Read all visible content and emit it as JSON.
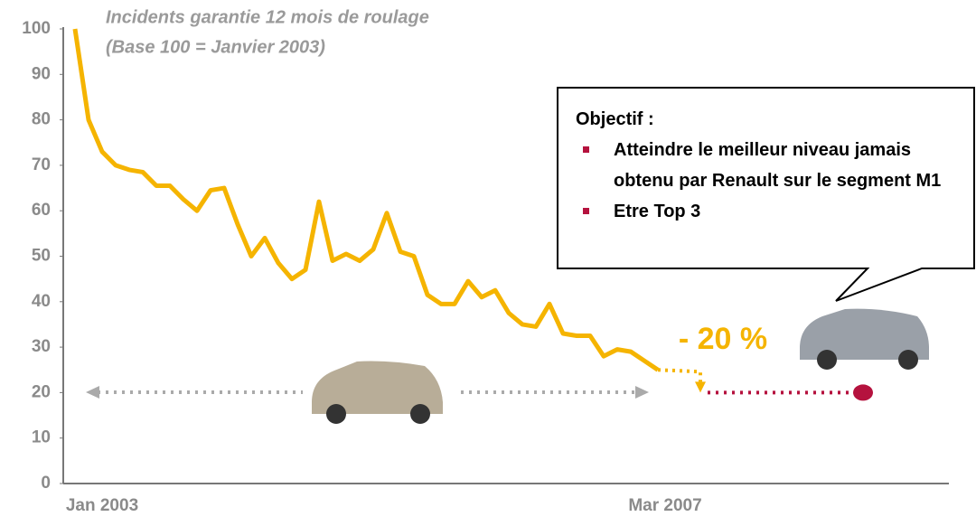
{
  "chart_data": {
    "type": "line",
    "title": "Incidents garantie 12 mois de roulage",
    "subtitle": "(Base 100 = Janvier 2003)",
    "categories": [
      "Jan 2003",
      null,
      null,
      null,
      null,
      null,
      null,
      null,
      null,
      null,
      null,
      null,
      null,
      null,
      null,
      null,
      null,
      null,
      null,
      null,
      null,
      null,
      null,
      null,
      null,
      null,
      null,
      null,
      null,
      null,
      null,
      null,
      null,
      null,
      null,
      null,
      null,
      null,
      null,
      null,
      null,
      null,
      null,
      "Mar 2007"
    ],
    "series": [
      {
        "color": "#f5b400",
        "values": [
          100,
          80,
          73,
          70,
          69,
          68.5,
          65.5,
          65.5,
          62.5,
          60,
          64.5,
          65,
          57,
          50,
          54,
          48.5,
          45,
          47,
          62,
          49,
          50.5,
          49,
          51.5,
          59.5,
          51,
          50,
          41.5,
          39.5,
          39.5,
          44.5,
          41,
          42.5,
          37.5,
          35,
          34.5,
          39.5,
          33,
          32.5,
          32.5,
          28,
          29.5,
          29,
          27,
          25
        ]
      }
    ],
    "ylim": [
      0,
      100
    ],
    "yticks": [
      0,
      10,
      20,
      30,
      40,
      50,
      60,
      70,
      80,
      90,
      100
    ],
    "target": {
      "value": 20,
      "color": "#b5123e"
    },
    "annotation": "- 20 %"
  },
  "callout": {
    "heading": "Objectif :",
    "bullets": [
      "Atteindre le meilleur niveau jamais obtenu par Renault sur le segment M1",
      "Etre Top 3"
    ]
  }
}
